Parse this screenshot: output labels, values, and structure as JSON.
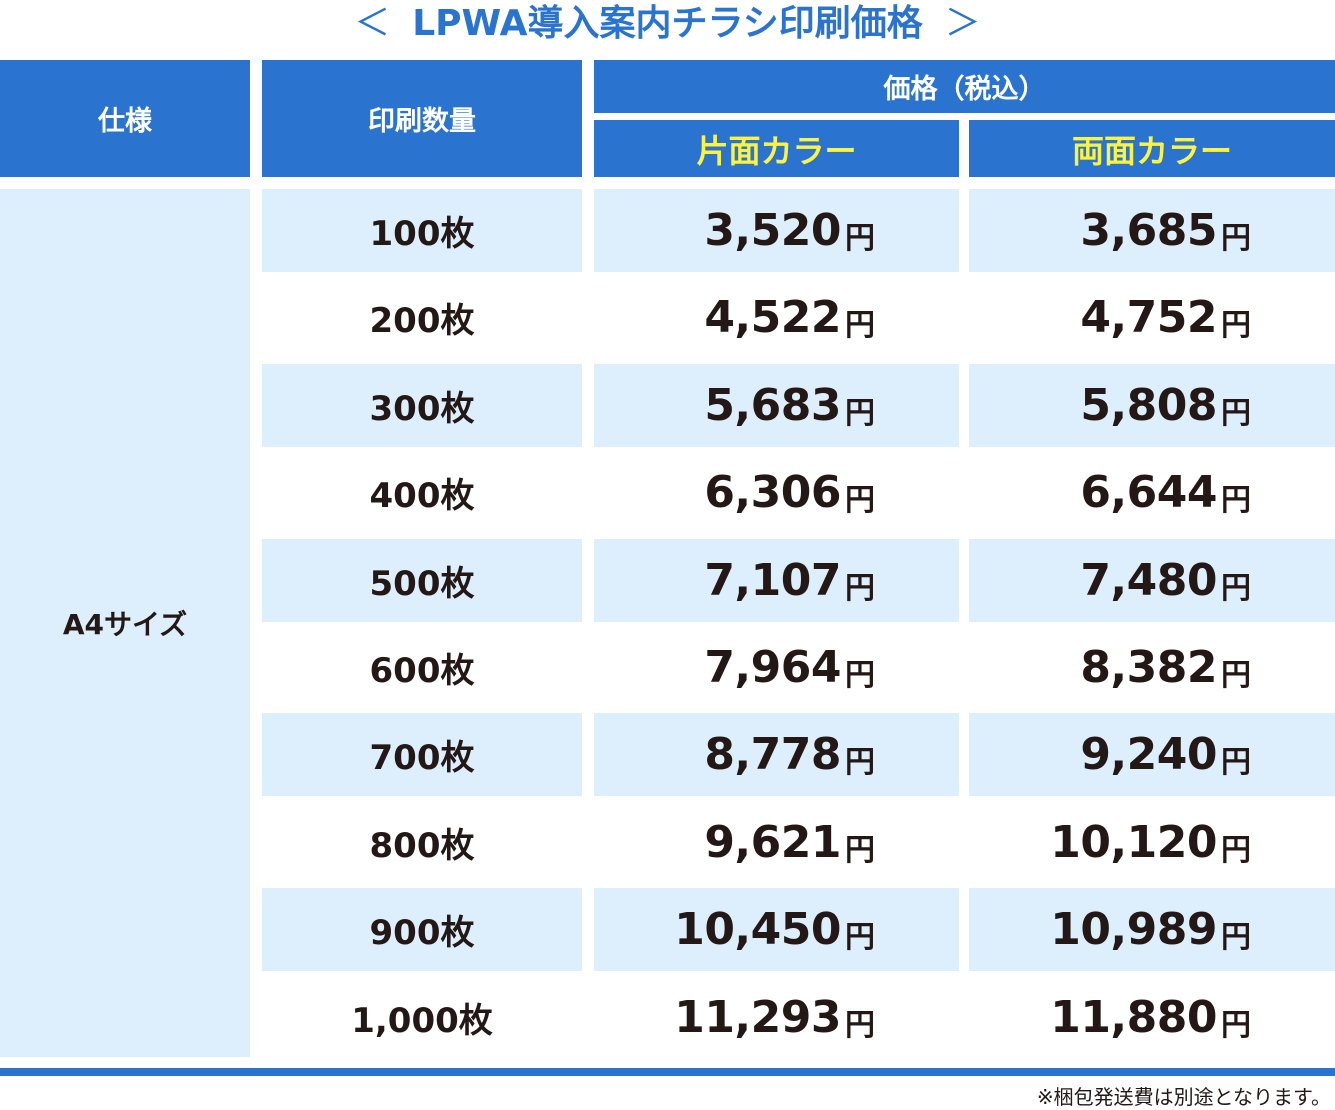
{
  "title": {
    "open_bracket": "＜",
    "text": "LPWA導入案内チラシ印刷価格",
    "close_bracket": "＞"
  },
  "header": {
    "spec": "仕様",
    "quantity": "印刷数量",
    "price": "価格（税込）",
    "single": "片面カラー",
    "double": "両面カラー"
  },
  "spec_value": "A4サイズ",
  "currency": "円",
  "rows": [
    {
      "qty": "100枚",
      "single": "3,520",
      "double": "3,685"
    },
    {
      "qty": "200枚",
      "single": "4,522",
      "double": "4,752"
    },
    {
      "qty": "300枚",
      "single": "5,683",
      "double": "5,808"
    },
    {
      "qty": "400枚",
      "single": "6,306",
      "double": "6,644"
    },
    {
      "qty": "500枚",
      "single": "7,107",
      "double": "7,480"
    },
    {
      "qty": "600枚",
      "single": "7,964",
      "double": "8,382"
    },
    {
      "qty": "700枚",
      "single": "8,778",
      "double": "9,240"
    },
    {
      "qty": "800枚",
      "single": "9,621",
      "double": "10,120"
    },
    {
      "qty": "900枚",
      "single": "10,450",
      "double": "10,989"
    },
    {
      "qty": "1,000枚",
      "single": "11,293",
      "double": "11,880"
    }
  ],
  "note": "※梱包発送費は別途となります。",
  "colors": {
    "header_blue": "#2a74cf",
    "highlight_yellow": "#fff33f",
    "row_light_blue": "#ddeefc",
    "text_dark": "#231815"
  }
}
